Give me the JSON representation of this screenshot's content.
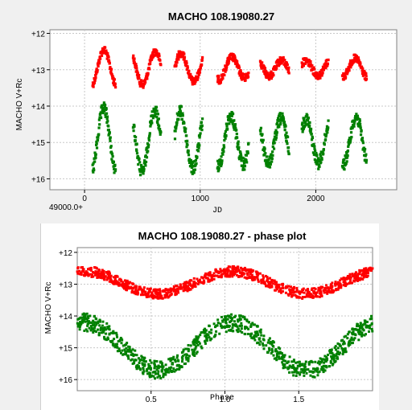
{
  "chart_data": [
    {
      "type": "scatter",
      "title": "MACHO 108.19080.27",
      "xlabel": "JD",
      "ylabel": "MACHO V+Rc",
      "x_offset_label": "49000.0+",
      "xlim": [
        -300,
        2700
      ],
      "ylim": [
        16.3,
        11.9
      ],
      "y_inverted": true,
      "grid": true,
      "x_ticks": [
        0,
        1000,
        2000
      ],
      "y_ticks": [
        12,
        13,
        14,
        15,
        16
      ],
      "y_tick_labels": [
        "+12",
        "+13",
        "+14",
        "+15",
        "+16"
      ],
      "observing_seasons": [
        [
          70,
          270
        ],
        [
          420,
          660
        ],
        [
          780,
          1020
        ],
        [
          1150,
          1420
        ],
        [
          1520,
          1770
        ],
        [
          1880,
          2110
        ],
        [
          2230,
          2440
        ]
      ],
      "period_days": 219,
      "series": [
        {
          "name": "",
          "color": "#ff0000",
          "mean": 12.95,
          "amplitude": 0.35
        },
        {
          "name": "",
          "color": "#008000",
          "mean": 14.95,
          "amplitude": 0.75
        }
      ]
    },
    {
      "type": "scatter",
      "title": "MACHO 108.19080.27 - phase plot",
      "xlabel": "Phase",
      "ylabel": "MACHO V+Rc",
      "xlim": [
        0,
        2
      ],
      "ylim": [
        16.35,
        11.85
      ],
      "y_inverted": true,
      "grid": true,
      "x_ticks": [
        0.5,
        1.0,
        1.5
      ],
      "x_tick_labels": [
        "0.5",
        "1.0",
        "1.5"
      ],
      "y_ticks": [
        12,
        13,
        14,
        15,
        16
      ],
      "y_tick_labels": [
        "+12",
        "+13",
        "+14",
        "+15",
        "+16"
      ],
      "series": [
        {
          "name": "",
          "color": "#ff0000",
          "mean": 12.95,
          "amplitude": 0.35,
          "min_phase": 0.55
        },
        {
          "name": "",
          "color": "#008000",
          "mean": 14.95,
          "amplitude": 0.75,
          "min_phase": 0.55
        }
      ]
    }
  ]
}
